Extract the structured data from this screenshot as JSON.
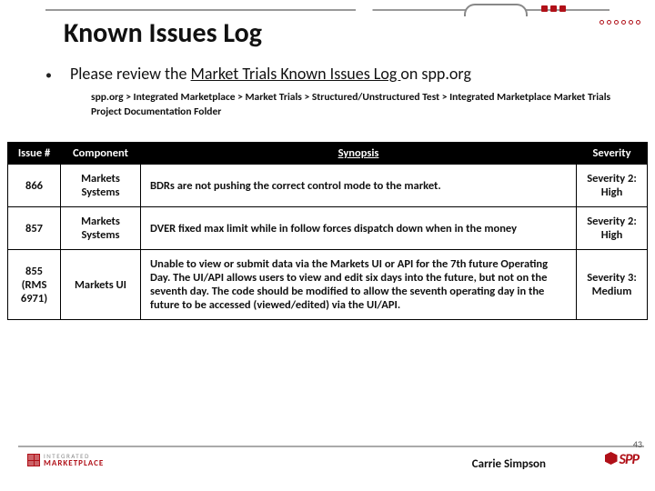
{
  "title": "Known Issues Log",
  "bullet": {
    "prefix": "Please review the ",
    "link": "Market Trials Known Issues Log ",
    "suffix": "on spp.org"
  },
  "breadcrumb": "spp.org > Integrated Marketplace > Market Trials > Structured/Unstructured Test > Integrated Marketplace Market Trials Project Documentation Folder",
  "table": {
    "headers": {
      "issue": "Issue #",
      "component": "Component",
      "synopsis": "Synopsis",
      "severity": "Severity"
    },
    "rows": [
      {
        "issue": "866",
        "component": "Markets Systems",
        "synopsis": "BDRs are not pushing the correct control mode to the market.",
        "severity": "Severity 2: High"
      },
      {
        "issue": "857",
        "component": "Markets Systems",
        "synopsis": "DVER fixed max limit while in follow forces dispatch down when in the money",
        "severity": "Severity 2: High"
      },
      {
        "issue": "855 (RMS 6971)",
        "component": "Markets UI",
        "synopsis": "Unable to view or submit data via the Markets UI or API for the 7th future Operating Day. The UI/API allows users to view and edit six days into the future, but not on the seventh day. The code should be modified to allow the seventh operating day in the future to be accessed (viewed/edited) via the UI/API.",
        "severity": "Severity 3: Medium"
      }
    ]
  },
  "footer": {
    "logo1_top": "INTEGRATED",
    "logo1_bottom": "MARKETPLACE",
    "logo2": "SPP",
    "author": "Carrie Simpson",
    "page": "43"
  },
  "colors": {
    "accent": "#b01018",
    "header_bg": "#000000",
    "text": "#111111",
    "rule": "#aaaaaa"
  }
}
